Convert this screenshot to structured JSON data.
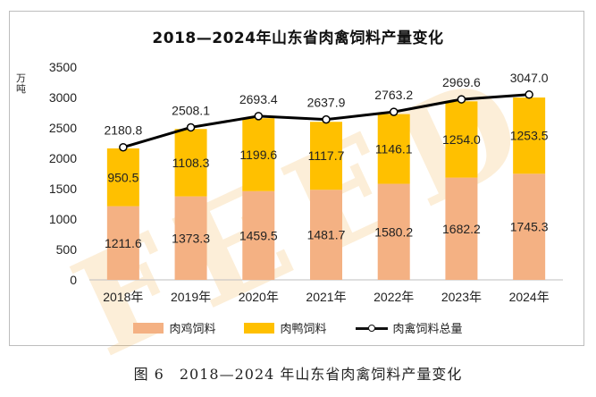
{
  "caption": "图 6　2018—2024 年山东省肉禽饲料产量变化",
  "watermark": "FEED",
  "chart_data": {
    "type": "bar",
    "title": "2018—2024年山东省肉禽饲料产量变化",
    "ylabel": "万吨",
    "xlabel": "",
    "ylim": [
      0,
      3500
    ],
    "yticks": [
      0,
      500,
      1000,
      1500,
      2000,
      2500,
      3000,
      3500
    ],
    "categories": [
      "2018年",
      "2019年",
      "2020年",
      "2021年",
      "2022年",
      "2023年",
      "2024年"
    ],
    "series": [
      {
        "name": "肉鸡饲料",
        "kind": "stacked-bar",
        "color": "#F4B183",
        "values": [
          1211.6,
          1373.3,
          1459.5,
          1481.7,
          1580.2,
          1682.2,
          1745.3
        ]
      },
      {
        "name": "肉鸭饲料",
        "kind": "stacked-bar",
        "color": "#FFC000",
        "values": [
          950.5,
          1108.3,
          1199.6,
          1117.7,
          1146.1,
          1254.0,
          1253.5
        ]
      },
      {
        "name": "肉禽饲料总量",
        "kind": "line",
        "color": "#000000",
        "values": [
          2180.8,
          2508.1,
          2693.4,
          2637.9,
          2763.2,
          2969.6,
          3047.0
        ]
      }
    ],
    "grid": false,
    "legend_position": "bottom"
  }
}
